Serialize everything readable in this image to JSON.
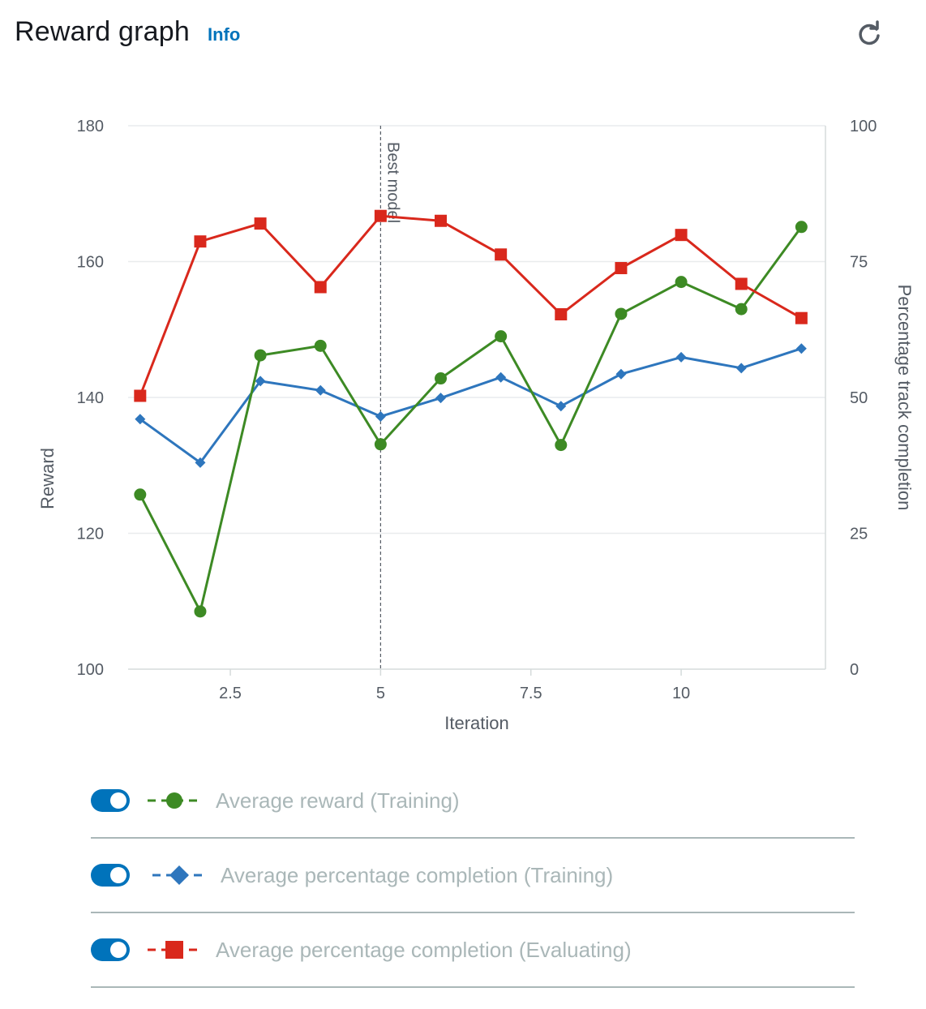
{
  "header": {
    "title": "Reward graph",
    "info_label": "Info"
  },
  "icons": {
    "refresh": "refresh-icon"
  },
  "colors": {
    "reward_training": "#3d8a24",
    "completion_training": "#2e76bd",
    "completion_evaluating": "#d9281c",
    "toggle_on": "#0073bb",
    "legend_text": "#aab7b8",
    "info_link": "#0073bb"
  },
  "legend": [
    {
      "label": "Average reward (Training)",
      "marker": "circle",
      "enabled": true
    },
    {
      "label": "Average percentage completion (Training)",
      "marker": "diamond",
      "enabled": true
    },
    {
      "label": "Average percentage completion (Evaluating)",
      "marker": "square",
      "enabled": true
    }
  ],
  "chart_data": {
    "type": "line",
    "xlabel": "Iteration",
    "ylabel": "Reward",
    "y2label": "Percentage track completion",
    "xlim": [
      0.8,
      12.4
    ],
    "ylim": [
      100,
      180
    ],
    "y2lim": [
      0,
      100
    ],
    "xticks": [
      "2.5",
      "5",
      "7.5",
      "10"
    ],
    "yticks": [
      "100",
      "120",
      "140",
      "160",
      "180"
    ],
    "y2ticks": [
      "0",
      "25",
      "50",
      "75",
      "100"
    ],
    "grid": true,
    "annotations": [
      {
        "x": 5,
        "label": "Best model"
      }
    ],
    "x": [
      1,
      2,
      3,
      4,
      5,
      6,
      7,
      8,
      9,
      10,
      11,
      12
    ],
    "series": [
      {
        "name": "Average reward (Training)",
        "axis": "left",
        "marker": "circle",
        "values": [
          125.7,
          108.5,
          146.2,
          147.6,
          133.1,
          142.8,
          149.0,
          133.0,
          152.3,
          157.0,
          153.0,
          165.1
        ]
      },
      {
        "name": "Average percentage completion (Training)",
        "axis": "right",
        "marker": "diamond",
        "values": [
          46.0,
          38.0,
          53.0,
          51.3,
          46.5,
          49.9,
          53.7,
          48.4,
          54.3,
          57.4,
          55.4,
          59.0
        ]
      },
      {
        "name": "Average percentage completion (Evaluating)",
        "axis": "right",
        "marker": "square",
        "values": [
          50.3,
          78.7,
          82.0,
          70.3,
          83.4,
          82.5,
          76.3,
          65.3,
          73.8,
          79.9,
          70.9,
          64.6
        ]
      }
    ]
  }
}
